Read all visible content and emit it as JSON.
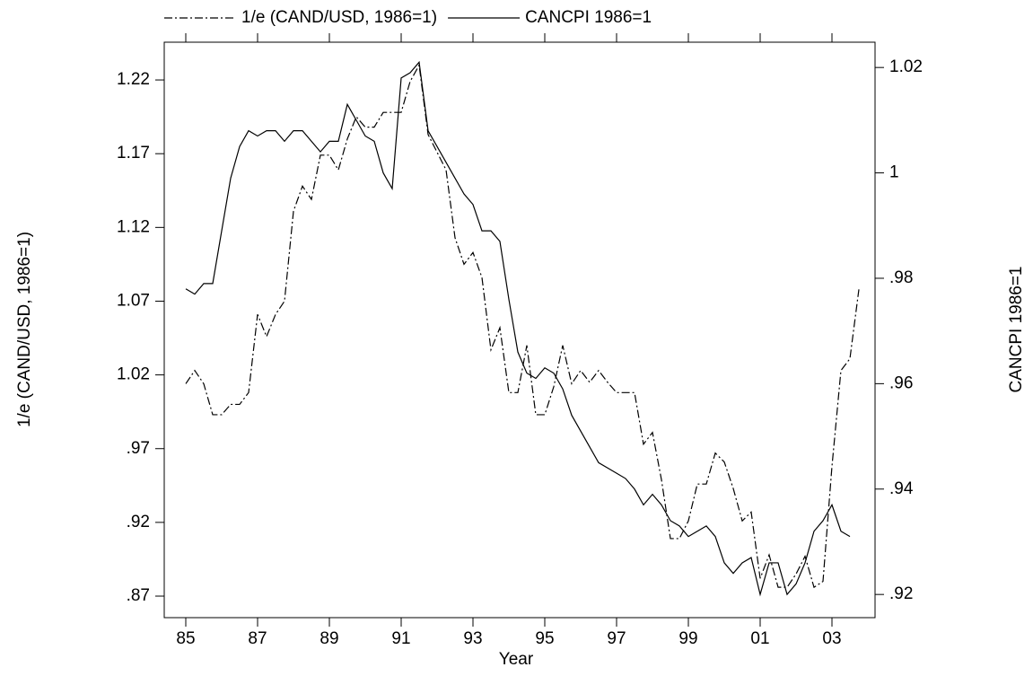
{
  "chart_data": {
    "type": "line",
    "x_label": "Year",
    "y_label": "1/e (CAND/USD, 1986=1)",
    "y2_label": "CANCPI 1986=1",
    "legend": "top",
    "x": [
      1985,
      1985.25,
      1985.5,
      1985.75,
      1986,
      1986.25,
      1986.5,
      1986.75,
      1987,
      1987.25,
      1987.5,
      1987.75,
      1988,
      1988.25,
      1988.5,
      1988.75,
      1989,
      1989.25,
      1989.5,
      1989.75,
      1990,
      1990.25,
      1990.5,
      1990.75,
      1991,
      1991.25,
      1991.5,
      1991.75,
      1992,
      1992.25,
      1992.5,
      1992.75,
      1993,
      1993.25,
      1993.5,
      1993.75,
      1994,
      1994.25,
      1994.5,
      1994.75,
      1995,
      1995.25,
      1995.5,
      1995.75,
      1996,
      1996.25,
      1996.5,
      1996.75,
      1997,
      1997.25,
      1997.5,
      1997.75,
      1998,
      1998.25,
      1998.5,
      1998.75,
      1999,
      1999.25,
      1999.5,
      1999.75,
      2000,
      2000.25,
      2000.5,
      2000.75,
      2001,
      2001.25,
      2001.5,
      2001.75,
      2002,
      2002.25,
      2002.5,
      2002.75,
      2003,
      2003.25,
      2003.5,
      2003.75
    ],
    "series": [
      {
        "name": "1/e (CAND/USD, 1986=1)",
        "color": "#000000",
        "dash": "dashdot",
        "values": [
          1.014,
          1.023,
          1.014,
          0.993,
          0.993,
          1.0,
          1.0,
          1.008,
          1.061,
          1.046,
          1.061,
          1.07,
          1.131,
          1.148,
          1.139,
          1.169,
          1.169,
          1.159,
          1.18,
          1.195,
          1.188,
          1.188,
          1.198,
          1.198,
          1.198,
          1.219,
          1.23,
          1.183,
          1.171,
          1.159,
          1.113,
          1.095,
          1.103,
          1.086,
          1.037,
          1.052,
          1.008,
          1.008,
          1.04,
          0.993,
          0.993,
          1.012,
          1.04,
          1.014,
          1.023,
          1.015,
          1.023,
          1.015,
          1.008,
          1.008,
          1.008,
          0.973,
          0.981,
          0.949,
          0.909,
          0.909,
          0.921,
          0.946,
          0.946,
          0.967,
          0.961,
          0.943,
          0.921,
          0.927,
          0.882,
          0.898,
          0.876,
          0.876,
          0.885,
          0.897,
          0.876,
          0.88,
          0.958,
          1.023,
          1.031,
          1.078
        ]
      },
      {
        "name": "CANCPI 1986=1",
        "color": "#000000",
        "dash": "solid",
        "axis": "y2",
        "values": [
          0.978,
          0.977,
          0.979,
          0.979,
          0.989,
          0.999,
          1.005,
          1.008,
          1.007,
          1.008,
          1.008,
          1.006,
          1.008,
          1.008,
          1.006,
          1.004,
          1.006,
          1.006,
          1.013,
          1.01,
          1.007,
          1.006,
          1.0,
          0.997,
          1.018,
          1.019,
          1.021,
          1.008,
          1.005,
          1.002,
          0.999,
          0.996,
          0.994,
          0.989,
          0.989,
          0.987,
          0.976,
          0.966,
          0.962,
          0.961,
          0.963,
          0.962,
          0.959,
          0.954,
          0.951,
          0.948,
          0.945,
          0.944,
          0.943,
          0.942,
          0.94,
          0.937,
          0.939,
          0.937,
          0.934,
          0.933,
          0.931,
          0.932,
          0.933,
          0.931,
          0.926,
          0.924,
          0.926,
          0.927,
          0.92,
          0.926,
          0.926,
          0.92,
          0.922,
          0.926,
          0.932,
          0.934,
          0.937,
          0.932,
          0.931,
          null
        ]
      }
    ],
    "xlim": [
      1984.4,
      2004.2
    ],
    "xticks": [
      {
        "value": 1985,
        "label": "85"
      },
      {
        "value": 1987,
        "label": "87"
      },
      {
        "value": 1989,
        "label": "89"
      },
      {
        "value": 1991,
        "label": "91"
      },
      {
        "value": 1993,
        "label": "93"
      },
      {
        "value": 1995,
        "label": "95"
      },
      {
        "value": 1997,
        "label": "97"
      },
      {
        "value": 1999,
        "label": "99"
      },
      {
        "value": 2001,
        "label": "01"
      },
      {
        "value": 2003,
        "label": "03"
      }
    ],
    "ylim": [
      0.8554,
      1.2456
    ],
    "yticks": [
      1.22,
      1.17,
      1.12,
      1.07,
      1.02,
      {
        "value": 0.97,
        "label": ".97"
      },
      {
        "value": 0.92,
        "label": ".92"
      },
      {
        "value": 0.87,
        "label": ".87"
      }
    ],
    "y2lim": [
      0.9156,
      1.0248
    ],
    "y2ticks": [
      1.02,
      1,
      {
        "value": 0.98,
        "label": ".98"
      },
      {
        "value": 0.96,
        "label": ".96"
      },
      {
        "value": 0.94,
        "label": ".94"
      },
      {
        "value": 0.92,
        "label": ".92"
      }
    ]
  }
}
